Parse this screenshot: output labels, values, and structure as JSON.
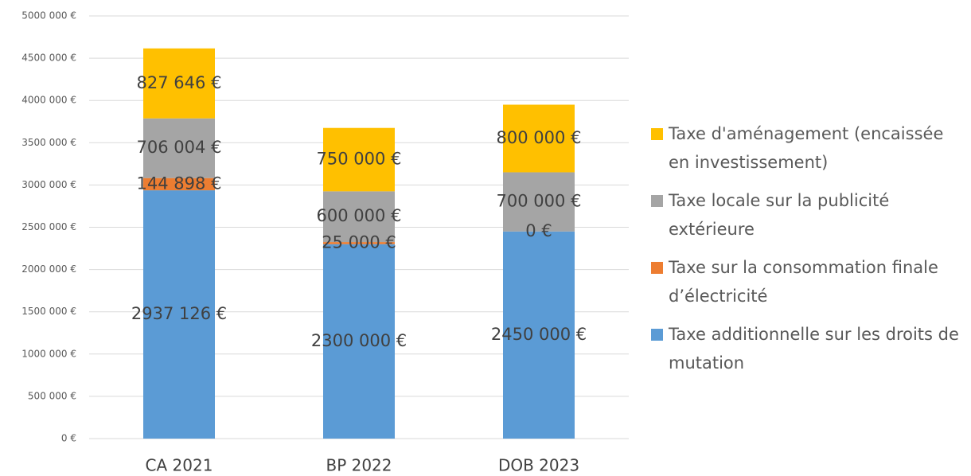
{
  "chart_data": {
    "type": "stacked_bar",
    "categories": [
      "CA 2021",
      "BP 2022",
      "DOB 2023"
    ],
    "series": [
      {
        "name": "Taxe additionnelle sur les droits de mutation",
        "color": "#5b9bd5",
        "values": [
          2937126,
          2300000,
          2450000
        ],
        "value_labels": [
          "2937 126 €",
          "2300 000 €",
          "2450 000 €"
        ]
      },
      {
        "name": "Taxe sur la consommation finale d’électricité",
        "color": "#ed7d31",
        "values": [
          144898,
          25000,
          0
        ],
        "value_labels": [
          "144 898 €",
          "25 000 €",
          "0 €"
        ]
      },
      {
        "name": "Taxe locale sur la publicité extérieure",
        "color": "#a5a5a5",
        "values": [
          706004,
          600000,
          700000
        ],
        "value_labels": [
          "706 004 €",
          "600 000 €",
          "700 000 €"
        ]
      },
      {
        "name": "Taxe d'aménagement (encaissée en investissement)",
        "color": "#ffc000",
        "values": [
          827646,
          750000,
          800000
        ],
        "value_labels": [
          "827 646 €",
          "750 000 €",
          "800 000 €"
        ]
      }
    ],
    "ylim": [
      0,
      5000000
    ],
    "yticks": [
      {
        "value": 0,
        "label": "0 €"
      },
      {
        "value": 500000,
        "label": "500 000 €"
      },
      {
        "value": 1000000,
        "label": "1000 000 €"
      },
      {
        "value": 1500000,
        "label": "1500 000 €"
      },
      {
        "value": 2000000,
        "label": "2000 000 €"
      },
      {
        "value": 2500000,
        "label": "2500 000 €"
      },
      {
        "value": 3000000,
        "label": "3000 000 €"
      },
      {
        "value": 3500000,
        "label": "3500 000 €"
      },
      {
        "value": 4000000,
        "label": "4000 000 €"
      },
      {
        "value": 4500000,
        "label": "4500 000 €"
      },
      {
        "value": 5000000,
        "label": "5000 000 €"
      }
    ],
    "grid": true,
    "legend": "right"
  }
}
